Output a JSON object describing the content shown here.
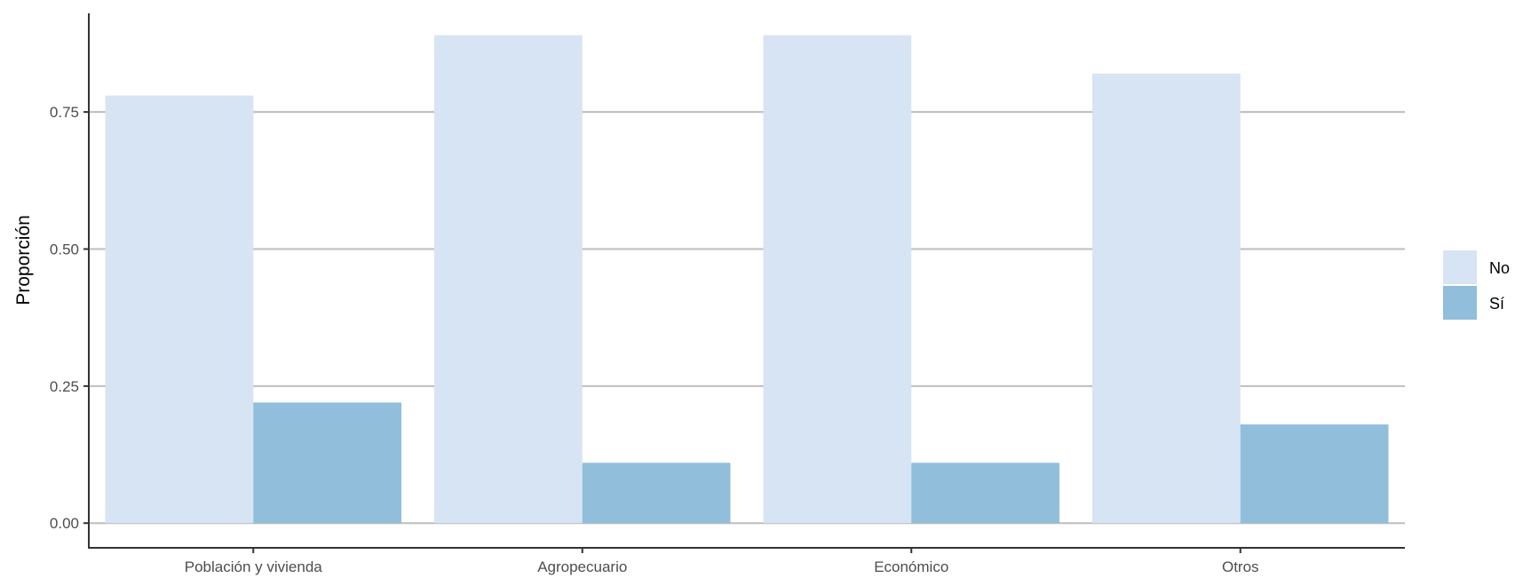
{
  "chart_data": {
    "type": "bar",
    "categories": [
      "Población y vivienda",
      "Agropecuario",
      "Económico",
      "Otros"
    ],
    "series": [
      {
        "name": "No",
        "values": [
          0.78,
          0.89,
          0.89,
          0.82
        ],
        "color": "#d6e4f4"
      },
      {
        "name": "Sí",
        "values": [
          0.22,
          0.11,
          0.11,
          0.18
        ],
        "color": "#90bedb"
      }
    ],
    "title": "",
    "xlabel": "",
    "ylabel": "Proporción",
    "ylim": [
      -0.045,
      0.93
    ],
    "yticks": [
      0.0,
      0.25,
      0.5,
      0.75
    ],
    "ytick_labels": [
      "0.00",
      "0.25",
      "0.50",
      "0.75"
    ],
    "grid": "horizontal major",
    "legend_position": "right",
    "gridline_color": "#bdbdbd",
    "axis_color": "#333333"
  }
}
